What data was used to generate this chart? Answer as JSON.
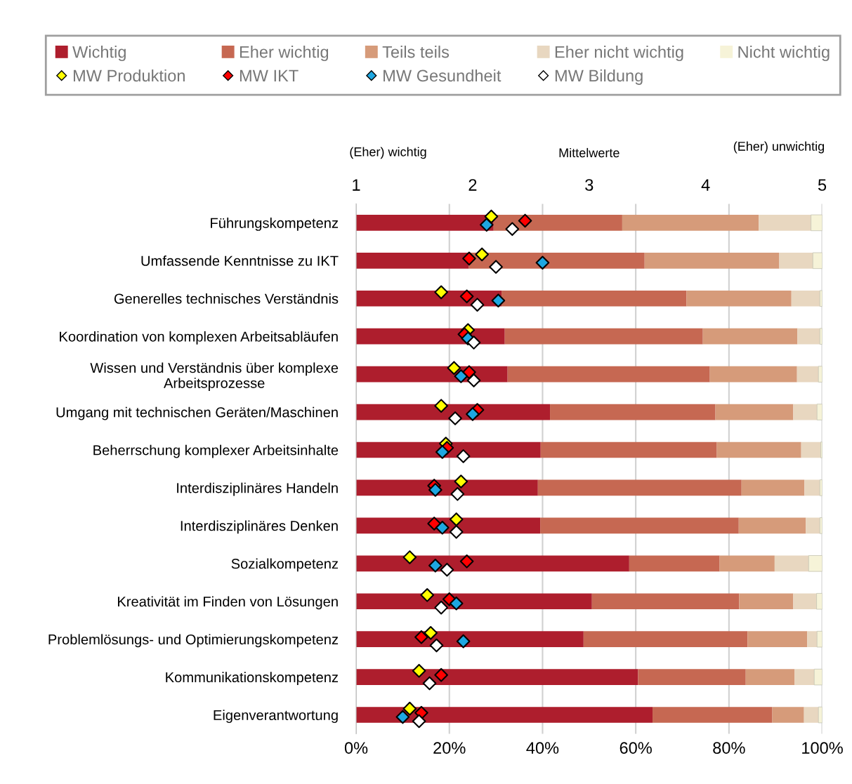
{
  "chart_data": {
    "type": "bar",
    "orientation": "horizontal",
    "stacked": true,
    "categories": [
      "Führungskompetenz",
      "Umfassende Kenntnisse zu IKT",
      "Generelles technisches Verständnis",
      "Koordination von komplexen Arbeitsabläufen",
      "Wissen und Verständnis über komplexe\nArbeitsprozesse",
      "Umgang mit technischen Geräten/Maschinen",
      "Beherrschung komplexer Arbeitsinhalte",
      "Interdisziplinäres Handeln",
      "Interdisziplinäres Denken",
      "Sozialkompetenz",
      "Kreativität im Finden von Lösungen",
      "Problemlösungs- und Optimierungskompetenz",
      "Kommunikationskompetenz",
      "Eigenverantwortung"
    ],
    "series": [
      {
        "name": "Wichtig",
        "color": "#ae1e2d",
        "values": [
          29.5,
          24.2,
          31.2,
          31.9,
          32.5,
          41.6,
          39.6,
          39.0,
          39.5,
          58.6,
          50.6,
          48.8,
          60.5,
          63.6
        ]
      },
      {
        "name": "Eher wichtig",
        "color": "#c66852",
        "values": [
          27.6,
          37.7,
          39.7,
          42.5,
          43.4,
          35.5,
          37.8,
          43.7,
          42.6,
          19.4,
          31.6,
          35.2,
          23.1,
          25.7
        ]
      },
      {
        "name": "Teils teils",
        "color": "#d69b7a",
        "values": [
          29.3,
          28.9,
          22.5,
          20.3,
          18.7,
          16.7,
          18.1,
          13.5,
          14.4,
          11.8,
          11.6,
          12.8,
          10.5,
          6.8
        ]
      },
      {
        "name": "Eher nicht wichtig",
        "color": "#e8d7c0",
        "values": [
          11.2,
          7.2,
          6.1,
          4.8,
          4.6,
          5.1,
          4.2,
          3.3,
          3.0,
          7.3,
          5.0,
          2.1,
          4.2,
          3.1
        ]
      },
      {
        "name": "Nicht wichtig",
        "color": "#f6f3d8",
        "values": [
          2.4,
          2.0,
          0.5,
          0.5,
          0.8,
          1.1,
          0.3,
          0.5,
          0.5,
          2.9,
          1.2,
          1.1,
          1.7,
          0.8
        ]
      },
      {
        "name": "MW Produktion",
        "type": "scatter",
        "axis": "x2",
        "color": "#ffff00",
        "values": [
          2.16,
          2.08,
          1.73,
          1.96,
          1.84,
          1.73,
          1.77,
          1.9,
          1.86,
          1.46,
          1.61,
          1.64,
          1.54,
          1.46
        ]
      },
      {
        "name": "MW IKT",
        "type": "scatter",
        "axis": "x2",
        "color": "#ff0000",
        "values": [
          2.45,
          1.97,
          1.95,
          1.93,
          1.97,
          2.04,
          1.78,
          1.67,
          1.67,
          1.95,
          1.8,
          1.56,
          1.73,
          1.56
        ]
      },
      {
        "name": "MW Gesundheit",
        "type": "scatter",
        "axis": "x2",
        "color": "#1ea7e1",
        "values": [
          2.12,
          2.6,
          2.22,
          1.96,
          1.9,
          2.0,
          1.74,
          1.68,
          1.74,
          1.68,
          1.86,
          1.92,
          null,
          1.4
        ]
      },
      {
        "name": "MW Bildung",
        "type": "scatter",
        "axis": "x2",
        "color": "#ffffff",
        "values": [
          2.34,
          2.2,
          2.04,
          2.01,
          2.01,
          1.85,
          1.92,
          1.87,
          1.86,
          1.78,
          1.73,
          1.69,
          1.63,
          1.54
        ]
      }
    ],
    "xlim": [
      0,
      100
    ],
    "xticks": [
      {
        "value": 0,
        "label": "0%"
      },
      {
        "value": 20,
        "label": "20%"
      },
      {
        "value": 40,
        "label": "40%"
      },
      {
        "value": 60,
        "label": "60%"
      },
      {
        "value": 80,
        "label": "80%"
      },
      {
        "value": 100,
        "label": "100%"
      }
    ],
    "x2lim": [
      1,
      5
    ],
    "x2ticks": [
      1,
      2,
      3,
      4,
      5
    ],
    "x2label": "Mittelwerte",
    "annotations": [
      "(Eher) wichtig",
      "(Eher) unwichtig"
    ],
    "marker": "diamond",
    "grid": "x",
    "legend": "top"
  }
}
